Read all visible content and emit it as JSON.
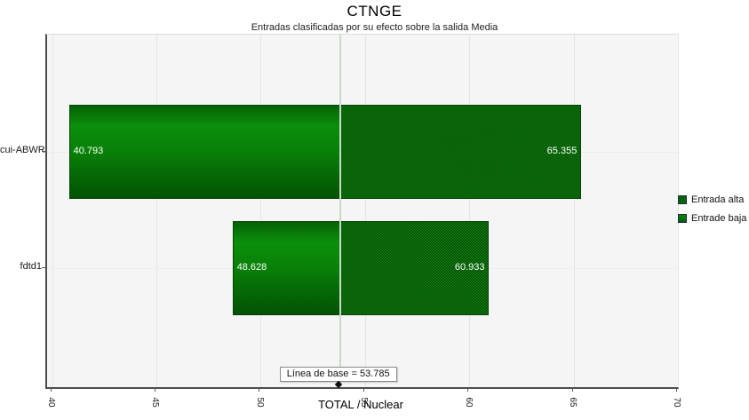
{
  "chart_data": {
    "type": "bar",
    "variant": "tornado",
    "orientation": "horizontal",
    "title": "CTNGE",
    "subtitle": "Entradas clasificadas por su efecto sobre la salida Media",
    "xlabel": "TOTAL / Nuclear",
    "xlim": [
      40,
      70
    ],
    "xticks": [
      "40",
      "45",
      "50",
      "55",
      "60",
      "65",
      "70"
    ],
    "grid": true,
    "legend_position": "right",
    "categories": [
      "cui-ABWR",
      "fdtd1"
    ],
    "series": [
      {
        "name": "Entrada alta",
        "style": "dotted-pattern",
        "values": [
          65.355,
          60.933
        ],
        "labels": [
          "65.355",
          "60.933"
        ]
      },
      {
        "name": "Entrade baja",
        "style": "solid-gradient",
        "values": [
          40.793,
          48.628
        ],
        "labels": [
          "40.793",
          "48.628"
        ]
      }
    ],
    "baseline": {
      "value": 53.785,
      "label": "Línea de base = 53.785"
    }
  },
  "legend": {
    "items": [
      {
        "label": "Entrada alta",
        "swatch": "green-dotted"
      },
      {
        "label": "Entrade baja",
        "swatch": "green-solid"
      }
    ]
  },
  "colors": {
    "bar_green": "#0b8a0b",
    "bar_green_dark": "#045304",
    "pattern_dot_dark": "#064106",
    "baseline_line": "#c6dcc6",
    "plot_bg": "#f5f5f5",
    "grid_line": "#e2e6e2",
    "axis_line": "#4d4d4d",
    "value_label_text": "#ffffff"
  }
}
